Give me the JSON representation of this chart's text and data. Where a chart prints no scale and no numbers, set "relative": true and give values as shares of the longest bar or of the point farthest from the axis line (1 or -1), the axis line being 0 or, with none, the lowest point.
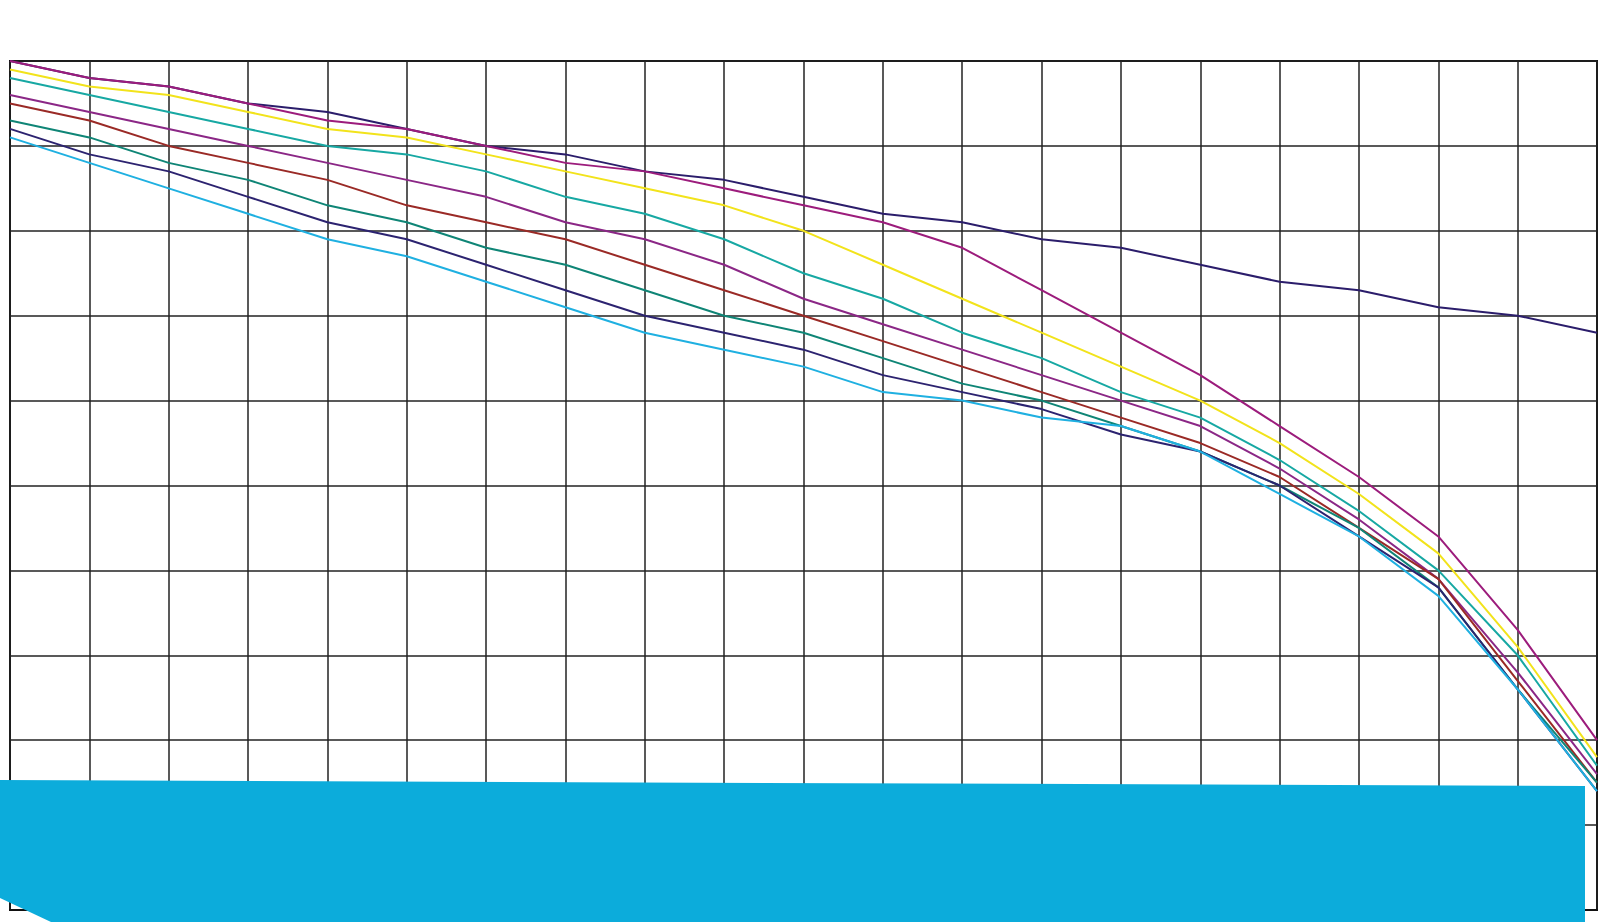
{
  "chart_data": {
    "type": "line",
    "relative": true,
    "grid": true,
    "categories": [
      null,
      null,
      null,
      null,
      null,
      null,
      null,
      null,
      null,
      null,
      null,
      null,
      null,
      null,
      null,
      null,
      null,
      null,
      null,
      null,
      null
    ],
    "series": [
      {
        "color": "#2b1d6b",
        "values": [
          1.0,
          0.98,
          0.97,
          0.95,
          0.94,
          0.92,
          0.9,
          0.89,
          0.87,
          0.86,
          0.84,
          0.82,
          0.81,
          0.79,
          0.78,
          0.76,
          0.74,
          0.73,
          0.71,
          0.7,
          0.68
        ]
      },
      {
        "color": "#9c1c7c",
        "values": [
          1.0,
          0.98,
          0.97,
          0.95,
          0.93,
          0.92,
          0.9,
          0.88,
          0.87,
          0.85,
          0.83,
          0.81,
          0.78,
          0.73,
          0.68,
          0.63,
          0.57,
          0.51,
          0.44,
          0.33,
          0.2
        ]
      },
      {
        "color": "#f2e31b",
        "values": [
          0.99,
          0.97,
          0.96,
          0.94,
          0.92,
          0.91,
          0.89,
          0.87,
          0.85,
          0.83,
          0.8,
          0.76,
          0.72,
          0.68,
          0.64,
          0.6,
          0.55,
          0.49,
          0.42,
          0.31,
          0.18
        ]
      },
      {
        "color": "#17a8a3",
        "values": [
          0.98,
          0.96,
          0.94,
          0.92,
          0.9,
          0.89,
          0.87,
          0.84,
          0.82,
          0.79,
          0.75,
          0.72,
          0.68,
          0.65,
          0.61,
          0.58,
          0.53,
          0.47,
          0.4,
          0.3,
          0.17
        ]
      },
      {
        "color": "#8b2786",
        "values": [
          0.96,
          0.94,
          0.92,
          0.9,
          0.88,
          0.86,
          0.84,
          0.81,
          0.79,
          0.76,
          0.72,
          0.69,
          0.66,
          0.63,
          0.6,
          0.57,
          0.52,
          0.46,
          0.39,
          0.28,
          0.16
        ]
      },
      {
        "color": "#9a2a26",
        "values": [
          0.95,
          0.93,
          0.9,
          0.88,
          0.86,
          0.83,
          0.81,
          0.79,
          0.76,
          0.73,
          0.7,
          0.67,
          0.64,
          0.61,
          0.58,
          0.55,
          0.51,
          0.45,
          0.39,
          0.27,
          0.15
        ]
      },
      {
        "color": "#0f8576",
        "values": [
          0.93,
          0.91,
          0.88,
          0.86,
          0.83,
          0.81,
          0.78,
          0.76,
          0.73,
          0.7,
          0.68,
          0.65,
          0.62,
          0.6,
          0.57,
          0.54,
          0.5,
          0.45,
          0.38,
          0.26,
          0.15
        ]
      },
      {
        "color": "#2c2370",
        "values": [
          0.92,
          0.89,
          0.87,
          0.84,
          0.81,
          0.79,
          0.76,
          0.73,
          0.7,
          0.68,
          0.66,
          0.63,
          0.61,
          0.59,
          0.56,
          0.54,
          0.5,
          0.44,
          0.38,
          0.26,
          0.14
        ]
      },
      {
        "color": "#1fb0e1",
        "values": [
          0.91,
          0.88,
          0.85,
          0.82,
          0.79,
          0.77,
          0.74,
          0.71,
          0.68,
          0.66,
          0.64,
          0.61,
          0.6,
          0.58,
          0.57,
          0.54,
          0.49,
          0.44,
          0.37,
          0.26,
          0.14
        ]
      }
    ]
  }
}
